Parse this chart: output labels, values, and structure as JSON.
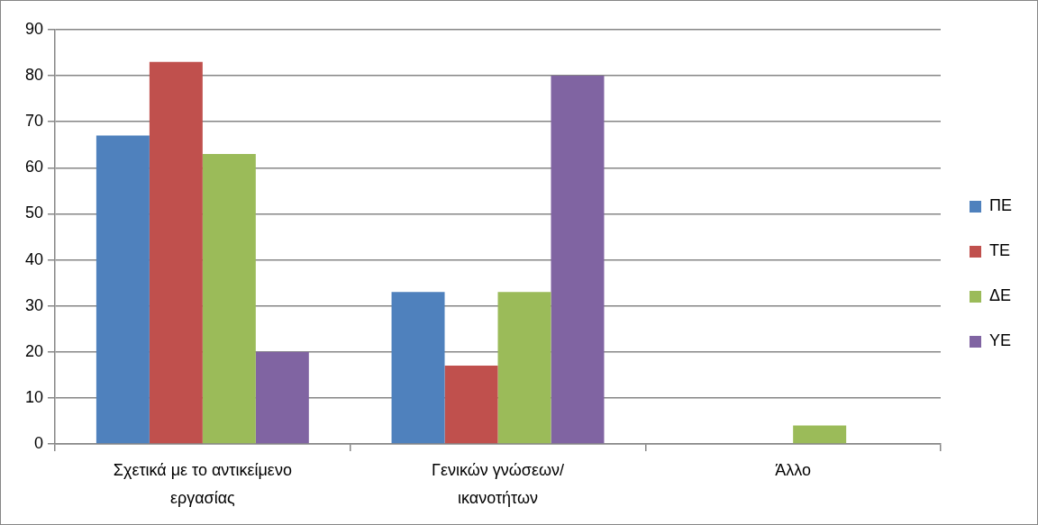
{
  "chart_data": {
    "type": "bar",
    "categories": [
      "Σχετικά με το αντικείμενο εργασίας",
      "Γενικών γνώσεων/ικανοτήτων",
      "Άλλο"
    ],
    "series": [
      {
        "name": "ΠΕ",
        "color": "#4f81bd",
        "values": [
          67,
          33,
          0
        ]
      },
      {
        "name": "ΤΕ",
        "color": "#c0504d",
        "values": [
          83,
          17,
          0
        ]
      },
      {
        "name": "ΔΕ",
        "color": "#9bbb59",
        "values": [
          63,
          33,
          4
        ]
      },
      {
        "name": "ΥΕ",
        "color": "#8064a2",
        "values": [
          20,
          80,
          0
        ]
      }
    ],
    "ylim": [
      0,
      90
    ],
    "yticks": [
      0,
      10,
      20,
      30,
      40,
      50,
      60,
      70,
      80,
      90
    ],
    "grid": "y",
    "legend": "right"
  }
}
